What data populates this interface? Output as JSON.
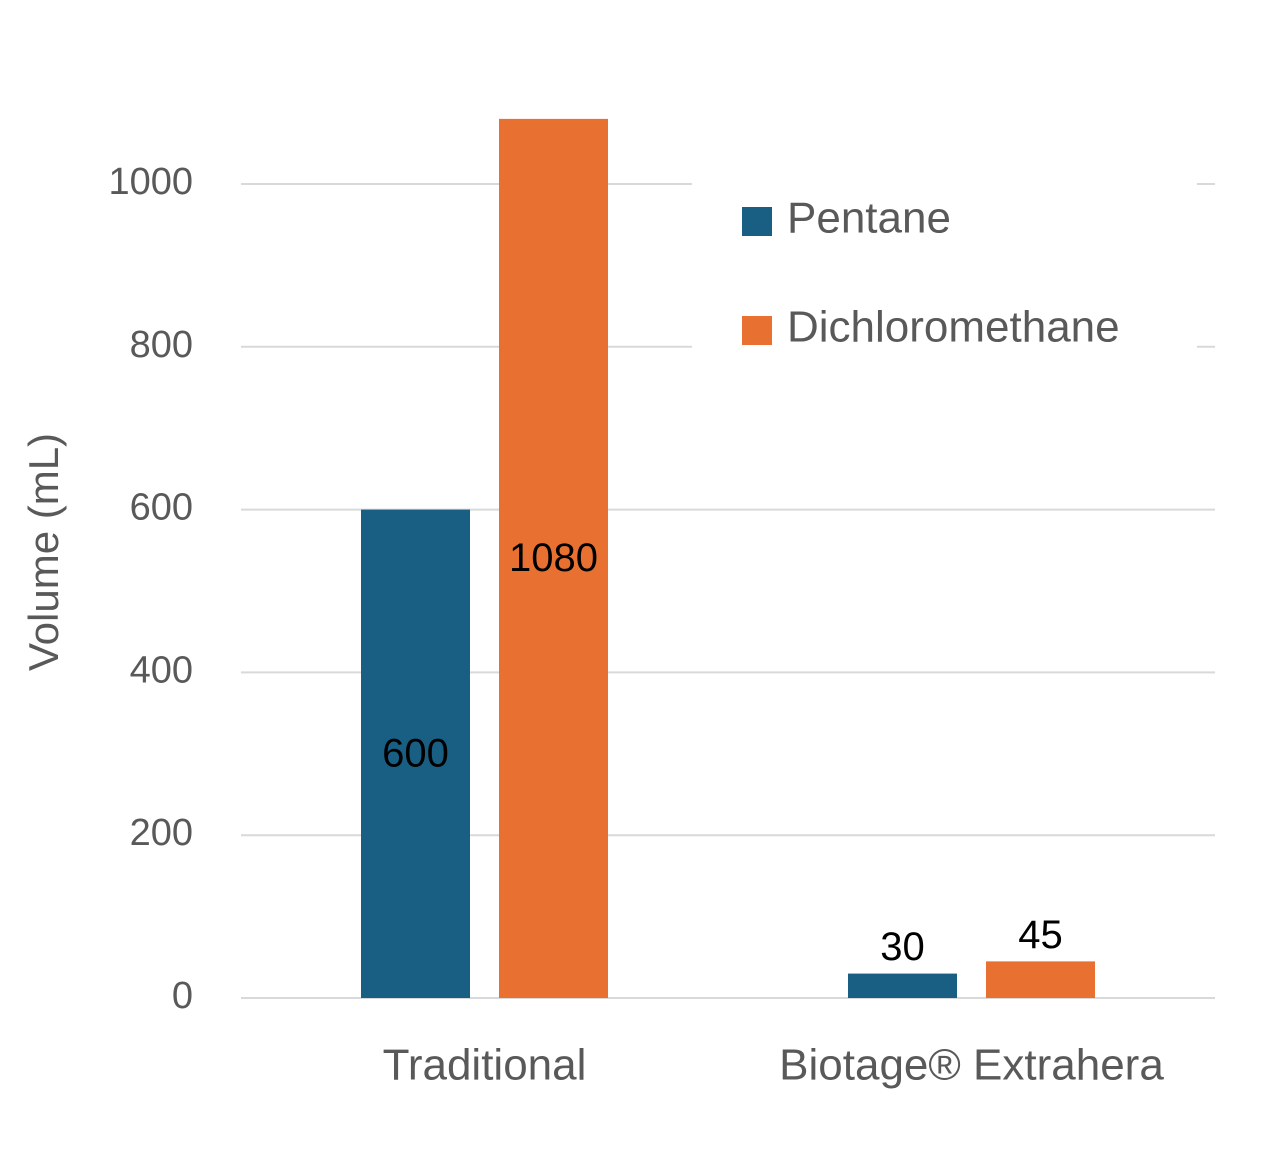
{
  "chart_data": {
    "type": "bar",
    "y_label": "Volume (mL)",
    "categories": [
      "Traditional",
      "Biotage® Extrahera"
    ],
    "series": [
      {
        "name": "Pentane",
        "color": "#185f83",
        "values": [
          600,
          30
        ]
      },
      {
        "name": "Dichloromethane",
        "color": "#e87132",
        "values": [
          1080,
          45
        ]
      }
    ],
    "ylim": [
      0,
      1100
    ],
    "yticks": [
      0,
      200,
      400,
      600,
      800,
      1000
    ],
    "grid": true,
    "legend": "upper right"
  }
}
